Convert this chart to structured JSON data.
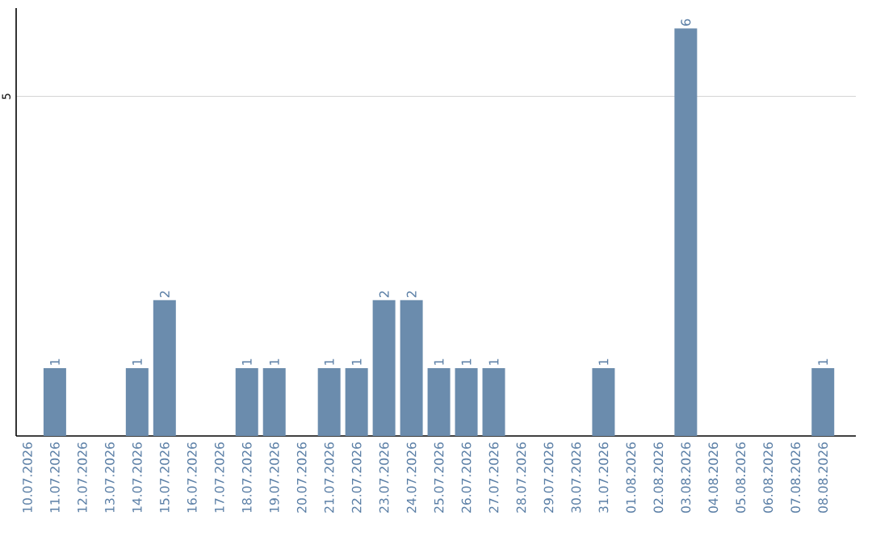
{
  "chart_data": {
    "type": "bar",
    "categories": [
      "10.07.2026",
      "11.07.2026",
      "12.07.2026",
      "13.07.2026",
      "14.07.2026",
      "15.07.2026",
      "16.07.2026",
      "17.07.2026",
      "18.07.2026",
      "19.07.2026",
      "20.07.2026",
      "21.07.2026",
      "22.07.2026",
      "23.07.2026",
      "24.07.2026",
      "25.07.2026",
      "26.07.2026",
      "27.07.2026",
      "28.07.2026",
      "29.07.2026",
      "30.07.2026",
      "31.07.2026",
      "01.08.2026",
      "02.08.2026",
      "03.08.2026",
      "04.08.2026",
      "05.08.2026",
      "06.08.2026",
      "07.08.2026",
      "08.08.2026"
    ],
    "values": [
      0,
      1,
      0,
      0,
      1,
      2,
      0,
      0,
      1,
      1,
      0,
      1,
      1,
      2,
      2,
      1,
      1,
      1,
      0,
      0,
      0,
      1,
      0,
      0,
      6,
      0,
      0,
      0,
      0,
      1
    ],
    "value_labels": [
      null,
      "1",
      null,
      null,
      "1",
      "2",
      null,
      null,
      "1",
      "1",
      null,
      "1",
      "1",
      "2",
      "2",
      "1",
      "1",
      "1",
      null,
      null,
      null,
      "1",
      null,
      null,
      "6",
      null,
      null,
      null,
      null,
      "1"
    ],
    "color": "#6b8cad",
    "ylim": [
      0,
      6.3
    ],
    "yticks": [
      5
    ],
    "grid": "y"
  }
}
